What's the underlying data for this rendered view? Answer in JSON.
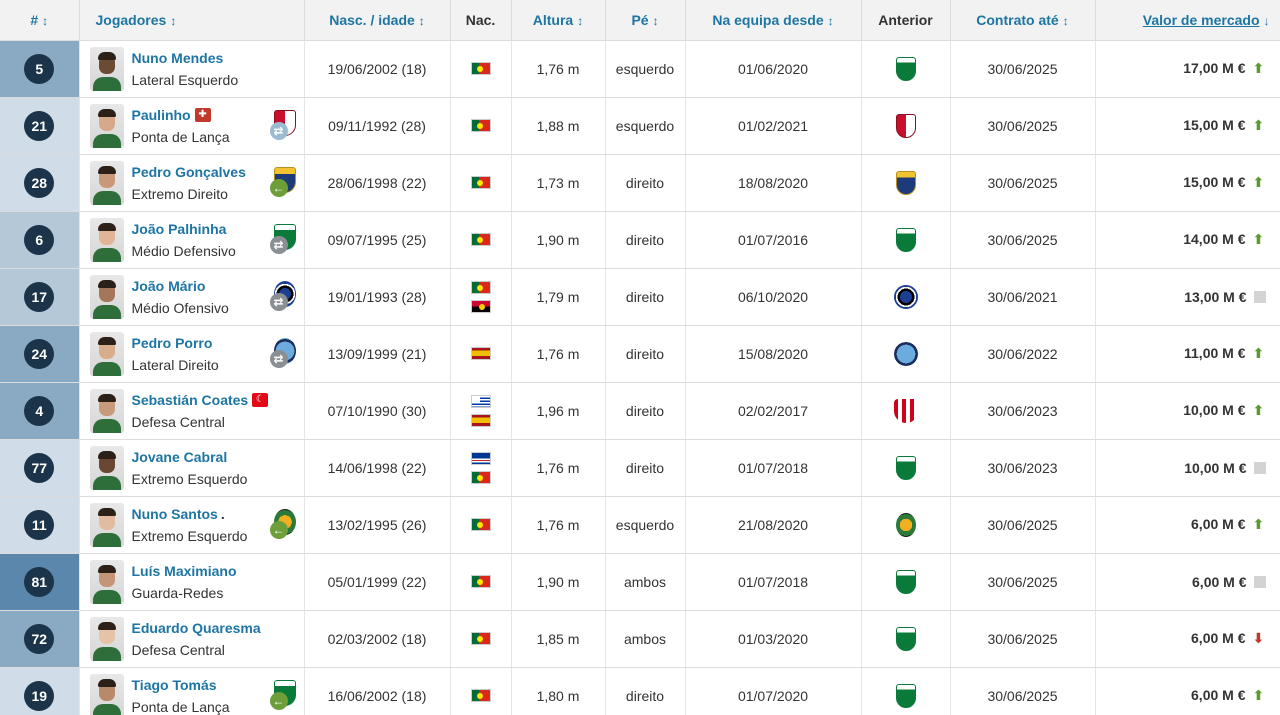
{
  "headers": {
    "num": "#",
    "players": "Jogadores",
    "birth": "Nasc. / idade",
    "nat": "Nac.",
    "height": "Altura",
    "foot": "Pé",
    "joined": "Na equipa desde",
    "previous": "Anterior",
    "contract": "Contrato até",
    "value": "Valor de mercado",
    "sort_icon": "↕",
    "sort_active_icon": "↓"
  },
  "rows": [
    {
      "num": "5",
      "name": "Nuno Mendes",
      "position": "Lateral Esquerdo",
      "birth": "19/06/2002 (18)",
      "nats": [
        "pt"
      ],
      "height": "1,76 m",
      "foot": "esquerdo",
      "joined": "01/06/2020",
      "prev": "sporting",
      "contract": "30/06/2025",
      "value": "17,00 M €",
      "trend": "up",
      "poscat": "def",
      "extra": ""
    },
    {
      "num": "21",
      "name": "Paulinho",
      "position": "Ponta de Lança",
      "birth": "09/11/1992 (28)",
      "nats": [
        "pt"
      ],
      "height": "1,88 m",
      "foot": "esquerdo",
      "joined": "01/02/2021",
      "prev": "braga",
      "contract": "30/06/2025",
      "value": "15,00 M €",
      "trend": "up",
      "poscat": "att",
      "extra": "injury",
      "transfer": "lightblue"
    },
    {
      "num": "28",
      "name": "Pedro Gonçalves",
      "position": "Extremo Direito",
      "birth": "28/06/1998 (22)",
      "nats": [
        "pt"
      ],
      "height": "1,73 m",
      "foot": "direito",
      "joined": "18/08/2020",
      "prev": "famalicao",
      "contract": "30/06/2025",
      "value": "15,00 M €",
      "trend": "up",
      "poscat": "att",
      "extra": "",
      "transfer": "green"
    },
    {
      "num": "6",
      "name": "João Palhinha",
      "position": "Médio Defensivo",
      "birth": "09/07/1995 (25)",
      "nats": [
        "pt"
      ],
      "height": "1,90 m",
      "foot": "direito",
      "joined": "01/07/2016",
      "prev": "sporting",
      "contract": "30/06/2025",
      "value": "14,00 M €",
      "trend": "up",
      "poscat": "mid",
      "extra": "",
      "transfer": "grey"
    },
    {
      "num": "17",
      "name": "João Mário",
      "position": "Médio Ofensivo",
      "birth": "19/01/1993 (28)",
      "nats": [
        "pt",
        "ao"
      ],
      "height": "1,79 m",
      "foot": "direito",
      "joined": "06/10/2020",
      "prev": "inter",
      "contract": "30/06/2021",
      "value": "13,00 M €",
      "trend": "same",
      "poscat": "mid",
      "extra": "",
      "transfer": "grey"
    },
    {
      "num": "24",
      "name": "Pedro Porro",
      "position": "Lateral Direito",
      "birth": "13/09/1999 (21)",
      "nats": [
        "es"
      ],
      "height": "1,76 m",
      "foot": "direito",
      "joined": "15/08/2020",
      "prev": "mancity",
      "contract": "30/06/2022",
      "value": "11,00 M €",
      "trend": "up",
      "poscat": "def",
      "extra": "",
      "transfer": "grey"
    },
    {
      "num": "4",
      "name": "Sebastián Coates",
      "position": "Defesa Central",
      "birth": "07/10/1990 (30)",
      "nats": [
        "uy",
        "es"
      ],
      "height": "1,96 m",
      "foot": "direito",
      "joined": "02/02/2017",
      "prev": "sunderland",
      "contract": "30/06/2023",
      "value": "10,00 M €",
      "trend": "up",
      "poscat": "def",
      "extra": "turkey"
    },
    {
      "num": "77",
      "name": "Jovane Cabral",
      "position": "Extremo Esquerdo",
      "birth": "14/06/1998 (22)",
      "nats": [
        "cv",
        "pt"
      ],
      "height": "1,76 m",
      "foot": "direito",
      "joined": "01/07/2018",
      "prev": "sporting",
      "contract": "30/06/2023",
      "value": "10,00 M €",
      "trend": "same",
      "poscat": "att",
      "extra": ""
    },
    {
      "num": "11",
      "name": "Nuno Santos",
      "position": "Extremo Esquerdo",
      "birth": "13/02/1995 (26)",
      "nats": [
        "pt"
      ],
      "height": "1,76 m",
      "foot": "esquerdo",
      "joined": "21/08/2020",
      "prev": "rioave",
      "contract": "30/06/2025",
      "value": "6,00 M €",
      "trend": "up",
      "poscat": "att",
      "extra": "dot",
      "transfer": "green"
    },
    {
      "num": "81",
      "name": "Luís Maximiano",
      "position": "Guarda-Redes",
      "birth": "05/01/1999 (22)",
      "nats": [
        "pt"
      ],
      "height": "1,90 m",
      "foot": "ambos",
      "joined": "01/07/2018",
      "prev": "sporting",
      "contract": "30/06/2025",
      "value": "6,00 M €",
      "trend": "same",
      "poscat": "gk",
      "extra": ""
    },
    {
      "num": "72",
      "name": "Eduardo Quaresma",
      "position": "Defesa Central",
      "birth": "02/03/2002 (18)",
      "nats": [
        "pt"
      ],
      "height": "1,85 m",
      "foot": "ambos",
      "joined": "01/03/2020",
      "prev": "sporting",
      "contract": "30/06/2025",
      "value": "6,00 M €",
      "trend": "down",
      "poscat": "def",
      "extra": ""
    },
    {
      "num": "19",
      "name": "Tiago Tomás",
      "position": "Ponta de Lança",
      "birth": "16/06/2002 (18)",
      "nats": [
        "pt"
      ],
      "height": "1,80 m",
      "foot": "direito",
      "joined": "01/07/2020",
      "prev": "sporting",
      "contract": "30/06/2025",
      "value": "6,00 M €",
      "trend": "up",
      "poscat": "att",
      "extra": "",
      "transfer": "green"
    }
  ],
  "extra_texts": {
    "dot": "."
  },
  "icons": {
    "trend_up": "▲",
    "trend_down": "▼",
    "arrow_in": "←",
    "arrow_swap": "⇄"
  },
  "colors": {
    "link": "#1d75a3",
    "num_circle": "#1c3449",
    "up": "#5a9a2e",
    "down": "#c0392b"
  }
}
